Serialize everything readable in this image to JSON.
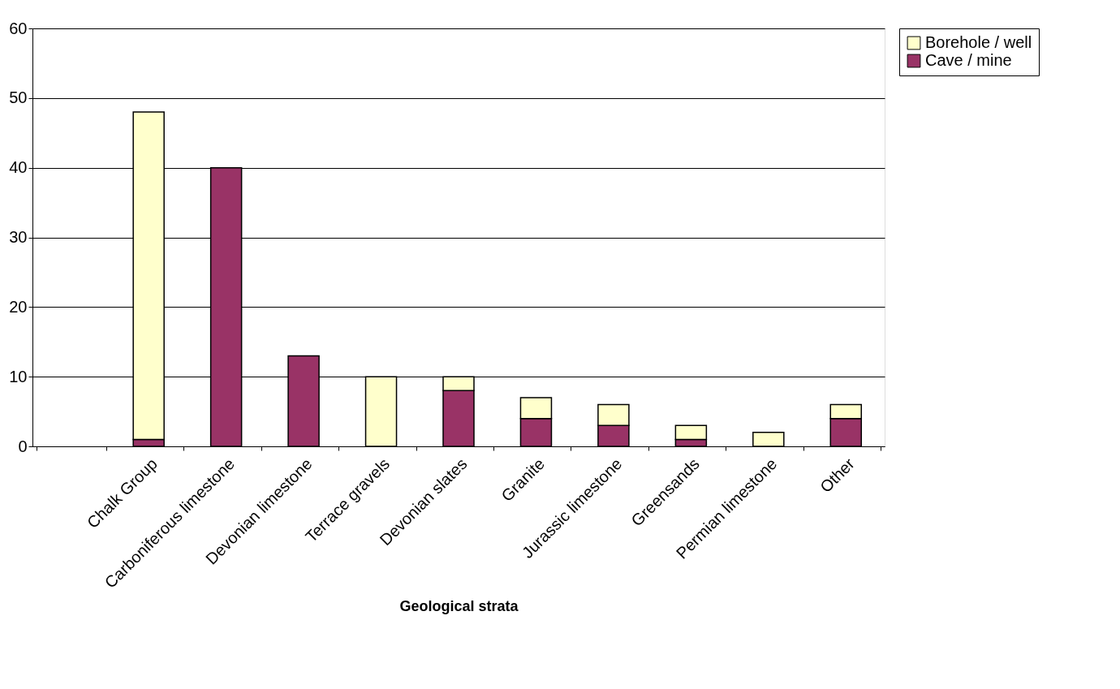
{
  "chart_data": {
    "type": "bar",
    "stacked": true,
    "xlabel": "Geological strata",
    "categories": [
      null,
      "Chalk Group",
      "Carboniferous limestone",
      "Devonian limestone",
      "Terrace gravels",
      "Devonian slates",
      "Granite",
      "Jurassic limestone",
      "Greensands",
      "Permian limestone",
      "Other"
    ],
    "series": [
      {
        "name": "Cave / mine",
        "color": "#993366",
        "values": [
          null,
          1,
          40,
          13,
          null,
          8,
          4,
          3,
          1,
          null,
          4
        ]
      },
      {
        "name": "Borehole / well",
        "color": "#ffffcc",
        "values": [
          null,
          47,
          null,
          null,
          10,
          2,
          3,
          3,
          2,
          2,
          2
        ]
      }
    ],
    "ylim": [
      0,
      60
    ],
    "yticks": [
      0,
      10,
      20,
      30,
      40,
      50,
      60
    ],
    "grid": "y",
    "legend": "right"
  }
}
